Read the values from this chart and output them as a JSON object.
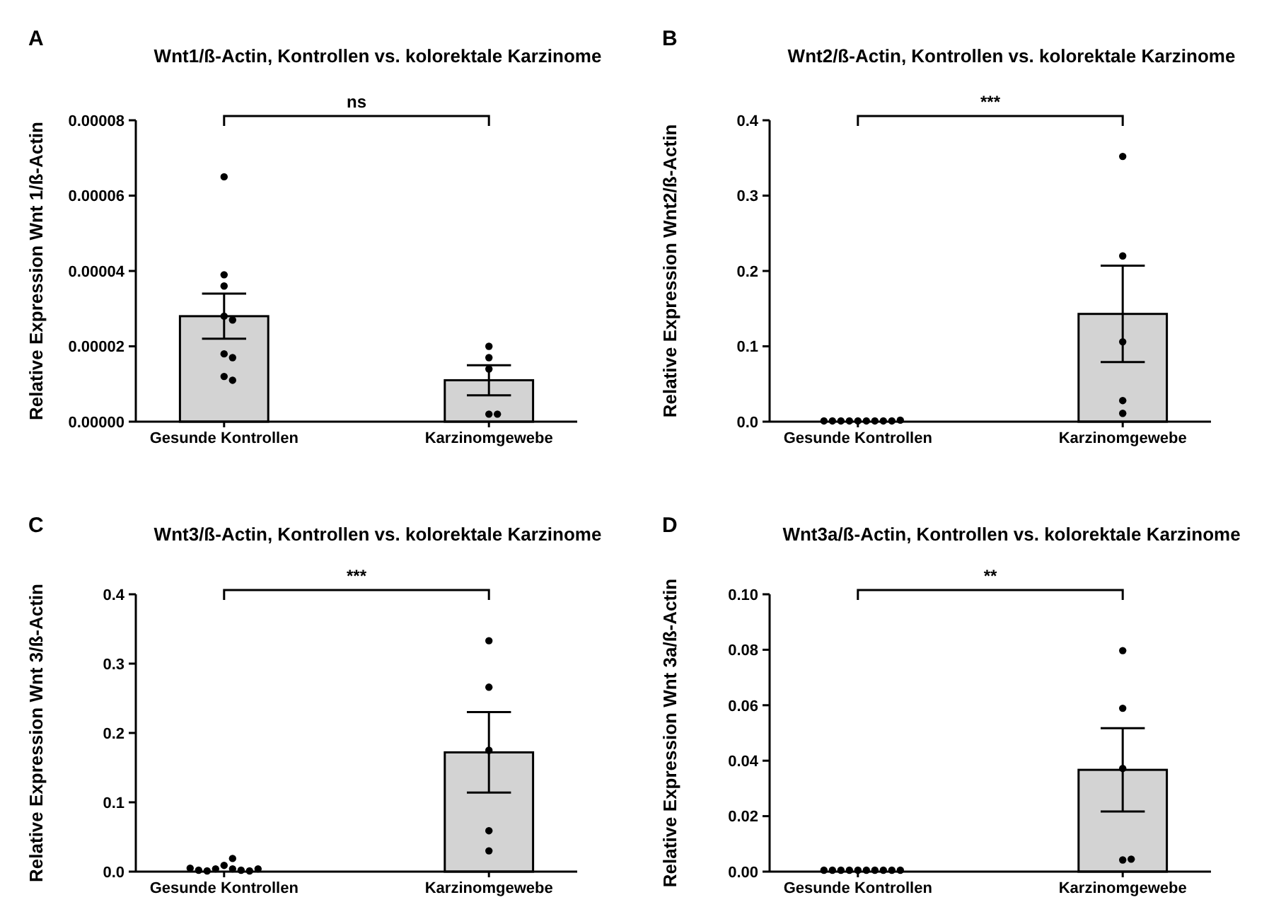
{
  "chart_data": [
    {
      "type": "bar",
      "title": "Wnt1/ß-Actin, Kontrollen vs. kolorektale Karzinome",
      "ylabel": "Relative Expression Wnt 1/ß-Actin",
      "categories": [
        "Gesunde Kontrollen",
        "Karzinomgewebe"
      ],
      "series": [
        {
          "type": "bar",
          "color": "#d3d3d3",
          "values": [
            2.8e-05,
            1.1e-05
          ],
          "errors": [
            6e-06,
            4e-06
          ]
        },
        {
          "type": "scatter",
          "color": "#000000",
          "marker": "circle",
          "x": [
            "Gesunde Kontrollen",
            "Gesunde Kontrollen",
            "Gesunde Kontrollen",
            "Gesunde Kontrollen",
            "Gesunde Kontrollen",
            "Gesunde Kontrollen",
            "Gesunde Kontrollen",
            "Gesunde Kontrollen",
            "Gesunde Kontrollen",
            "Karzinomgewebe",
            "Karzinomgewebe",
            "Karzinomgewebe",
            "Karzinomgewebe",
            "Karzinomgewebe"
          ],
          "values": [
            6.5e-05,
            3.9e-05,
            3.6e-05,
            2.8e-05,
            2.7e-05,
            1.8e-05,
            1.7e-05,
            1.2e-05,
            1.1e-05,
            2e-05,
            1.7e-05,
            1.4e-05,
            2e-06,
            2e-06
          ]
        }
      ],
      "ylim": [
        0,
        8e-05
      ],
      "yticks": [
        {
          "value": 0,
          "label": "0.00000"
        },
        {
          "value": 2e-05,
          "label": "0.00002"
        },
        {
          "value": 4e-05,
          "label": "0.00004"
        },
        {
          "value": 6e-05,
          "label": "0.00006"
        },
        {
          "value": 8e-05,
          "label": "0.00008"
        }
      ],
      "annotations": [
        "A",
        "ns"
      ]
    },
    {
      "type": "bar",
      "title": "Wnt2/ß-Actin, Kontrollen vs. kolorektale Karzinome",
      "ylabel": "Relative Expression Wnt2/ß-Actin",
      "categories": [
        "Gesunde Kontrollen",
        "Karzinomgewebe"
      ],
      "series": [
        {
          "type": "bar",
          "color": "#d3d3d3",
          "values": [
            null,
            0.143
          ],
          "errors": [
            null,
            0.064
          ]
        },
        {
          "type": "scatter",
          "color": "#000000",
          "marker": "circle",
          "x": [
            "Gesunde Kontrollen",
            "Gesunde Kontrollen",
            "Gesunde Kontrollen",
            "Gesunde Kontrollen",
            "Gesunde Kontrollen",
            "Gesunde Kontrollen",
            "Gesunde Kontrollen",
            "Gesunde Kontrollen",
            "Gesunde Kontrollen",
            "Gesunde Kontrollen",
            "Karzinomgewebe",
            "Karzinomgewebe",
            "Karzinomgewebe",
            "Karzinomgewebe",
            "Karzinomgewebe"
          ],
          "values": [
            0.001,
            0.001,
            0.001,
            0.001,
            0.001,
            0.001,
            0.001,
            0.001,
            0.001,
            0.002,
            0.352,
            0.22,
            0.106,
            0.028,
            0.011
          ]
        }
      ],
      "ylim": [
        0,
        0.4
      ],
      "yticks": [
        {
          "value": 0,
          "label": "0.0"
        },
        {
          "value": 0.1,
          "label": "0.1"
        },
        {
          "value": 0.2,
          "label": "0.2"
        },
        {
          "value": 0.3,
          "label": "0.3"
        },
        {
          "value": 0.4,
          "label": "0.4"
        }
      ],
      "annotations": [
        "B",
        "***"
      ]
    },
    {
      "type": "bar",
      "title": "Wnt3/ß-Actin, Kontrollen vs. kolorektale Karzinome",
      "ylabel": "Relative Expression Wnt 3/ß-Actin",
      "categories": [
        "Gesunde Kontrollen",
        "Karzinomgewebe"
      ],
      "series": [
        {
          "type": "bar",
          "color": "#d3d3d3",
          "values": [
            null,
            0.172
          ],
          "errors": [
            null,
            0.058
          ]
        },
        {
          "type": "scatter",
          "color": "#000000",
          "marker": "circle",
          "x": [
            "Gesunde Kontrollen",
            "Gesunde Kontrollen",
            "Gesunde Kontrollen",
            "Gesunde Kontrollen",
            "Gesunde Kontrollen",
            "Gesunde Kontrollen",
            "Gesunde Kontrollen",
            "Gesunde Kontrollen",
            "Gesunde Kontrollen",
            "Gesunde Kontrollen",
            "Karzinomgewebe",
            "Karzinomgewebe",
            "Karzinomgewebe",
            "Karzinomgewebe",
            "Karzinomgewebe"
          ],
          "values": [
            0.009,
            0.004,
            0.004,
            0.002,
            0.001,
            0.001,
            0.002,
            0.004,
            0.005,
            0.019,
            0.333,
            0.266,
            0.175,
            0.059,
            0.03
          ]
        }
      ],
      "ylim": [
        0,
        0.4
      ],
      "yticks": [
        {
          "value": 0,
          "label": "0.0"
        },
        {
          "value": 0.1,
          "label": "0.1"
        },
        {
          "value": 0.2,
          "label": "0.2"
        },
        {
          "value": 0.3,
          "label": "0.3"
        },
        {
          "value": 0.4,
          "label": "0.4"
        }
      ],
      "annotations": [
        "C",
        "***"
      ]
    },
    {
      "type": "bar",
      "title": "Wnt3a/ß-Actin, Kontrollen vs. kolorektale Karzinome",
      "ylabel": "Relative Expression Wnt 3a/ß-Actin",
      "categories": [
        "Gesunde Kontrollen",
        "Karzinomgewebe"
      ],
      "series": [
        {
          "type": "bar",
          "color": "#d3d3d3",
          "values": [
            null,
            0.0367
          ],
          "errors": [
            null,
            0.015
          ]
        },
        {
          "type": "scatter",
          "color": "#000000",
          "marker": "circle",
          "x": [
            "Gesunde Kontrollen",
            "Gesunde Kontrollen",
            "Gesunde Kontrollen",
            "Gesunde Kontrollen",
            "Gesunde Kontrollen",
            "Gesunde Kontrollen",
            "Gesunde Kontrollen",
            "Gesunde Kontrollen",
            "Gesunde Kontrollen",
            "Gesunde Kontrollen",
            "Karzinomgewebe",
            "Karzinomgewebe",
            "Karzinomgewebe",
            "Karzinomgewebe",
            "Karzinomgewebe"
          ],
          "values": [
            0.0005,
            0.0005,
            0.0005,
            0.0005,
            0.0005,
            0.0005,
            0.0005,
            0.0005,
            0.0005,
            0.0005,
            0.0797,
            0.0589,
            0.0372,
            0.0042,
            0.0045
          ]
        }
      ],
      "ylim": [
        0,
        0.1
      ],
      "yticks": [
        {
          "value": 0,
          "label": "0.00"
        },
        {
          "value": 0.02,
          "label": "0.02"
        },
        {
          "value": 0.04,
          "label": "0.04"
        },
        {
          "value": 0.06,
          "label": "0.06"
        },
        {
          "value": 0.08,
          "label": "0.08"
        },
        {
          "value": 0.1,
          "label": "0.10"
        }
      ],
      "annotations": [
        "D",
        "**"
      ]
    }
  ]
}
